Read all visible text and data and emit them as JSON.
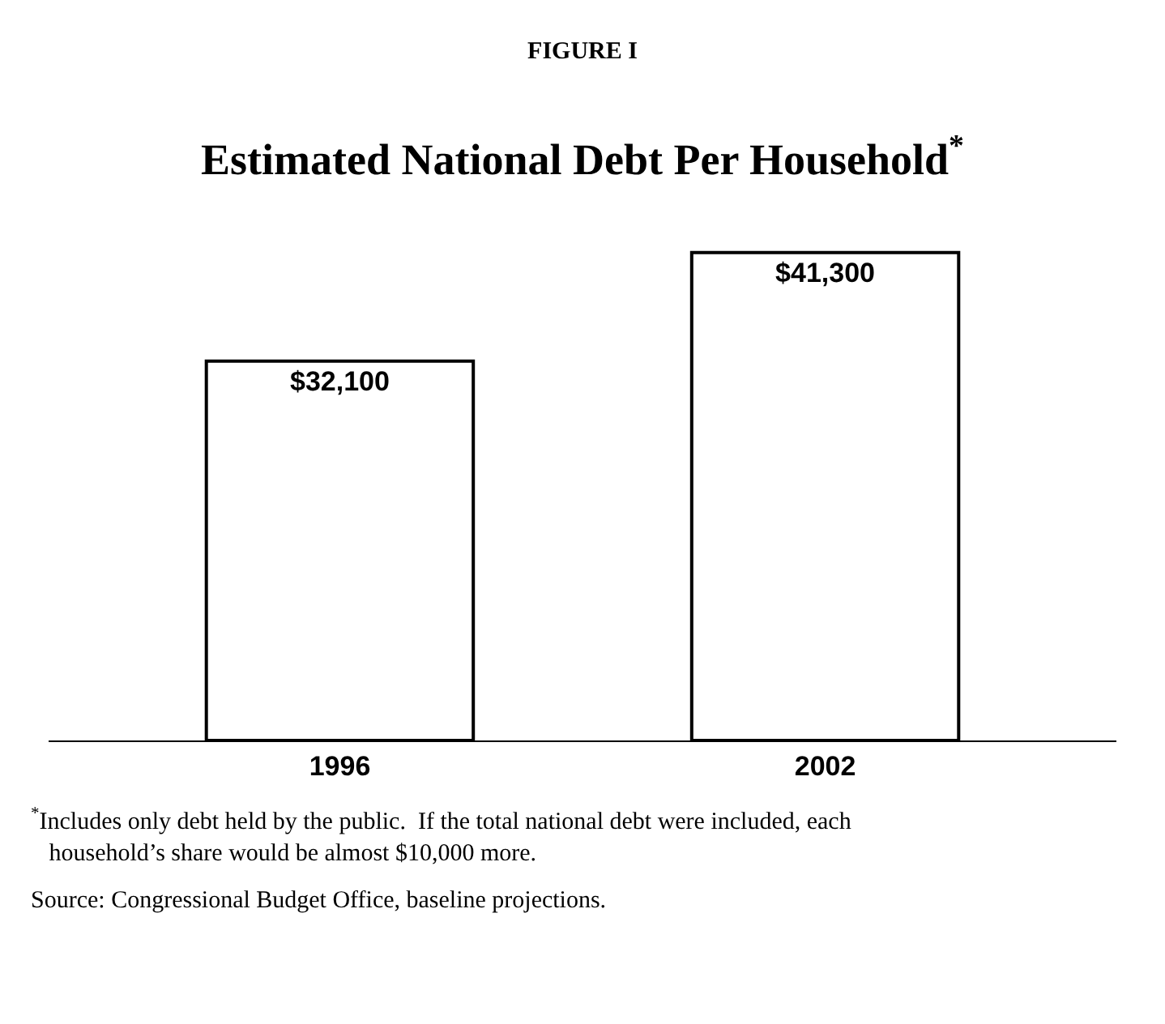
{
  "chart_data": {
    "type": "bar",
    "title": "FIGURE I",
    "subtitle": "Estimated National Debt Per Household$^{*}$",
    "categories": [
      "1996",
      "2002"
    ],
    "values": [
      32100,
      41300
    ],
    "color": "#ffffff",
    "value_labels": [
      "$32,100",
      "$41,300"
    ],
    "annotations": [
      "$^{*}$Includes only debt held by the public.  If the total national debt were included, each household’s share would be almost $10,000 more.",
      "Source: Congressional Budget Office, baseline projections."
    ]
  }
}
